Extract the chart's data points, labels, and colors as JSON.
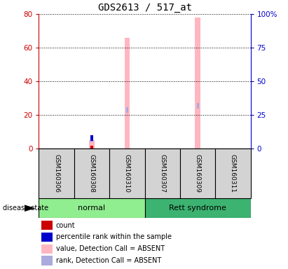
{
  "title": "GDS2613 / 517_at",
  "samples": [
    "GSM160306",
    "GSM160308",
    "GSM160310",
    "GSM160307",
    "GSM160309",
    "GSM160311"
  ],
  "groups": [
    "normal",
    "normal",
    "normal",
    "Rett syndrome",
    "Rett syndrome",
    "Rett syndrome"
  ],
  "group_colors": {
    "normal": "#90EE90",
    "Rett syndrome": "#3CB371"
  },
  "ylim_left": [
    0,
    80
  ],
  "ylim_right": [
    0,
    100
  ],
  "yticks_left": [
    0,
    20,
    40,
    60,
    80
  ],
  "yticks_right": [
    0,
    25,
    50,
    75,
    100
  ],
  "ytick_labels_right": [
    "0",
    "25",
    "50",
    "75",
    "100%"
  ],
  "left_axis_color": "#CC0000",
  "right_axis_color": "#0000CC",
  "value_absent_color": "#FFB6C1",
  "rank_absent_color": "#AAAADD",
  "count_color": "#CC0000",
  "percentile_color": "#0000CC",
  "bars": {
    "GSM160306": {
      "value": null,
      "rank": null,
      "count": null,
      "percentile": null
    },
    "GSM160308": {
      "value": 5.0,
      "rank": 7.0,
      "count": 1.0,
      "percentile": 8.0
    },
    "GSM160310": {
      "value": 66.0,
      "rank": 29.0,
      "count": null,
      "percentile": null
    },
    "GSM160307": {
      "value": null,
      "rank": null,
      "count": null,
      "percentile": null
    },
    "GSM160309": {
      "value": 78.0,
      "rank": 32.0,
      "count": null,
      "percentile": null
    },
    "GSM160311": {
      "value": null,
      "rank": null,
      "count": null,
      "percentile": null
    }
  },
  "legend_items": [
    {
      "color": "#CC0000",
      "label": "count"
    },
    {
      "color": "#0000CC",
      "label": "percentile rank within the sample"
    },
    {
      "color": "#FFB6C1",
      "label": "value, Detection Call = ABSENT"
    },
    {
      "color": "#AAAADD",
      "label": "rank, Detection Call = ABSENT"
    }
  ],
  "disease_state_label": "disease state",
  "bar_width": 0.15,
  "rank_bar_width": 0.15,
  "small_bar_width": 0.06
}
